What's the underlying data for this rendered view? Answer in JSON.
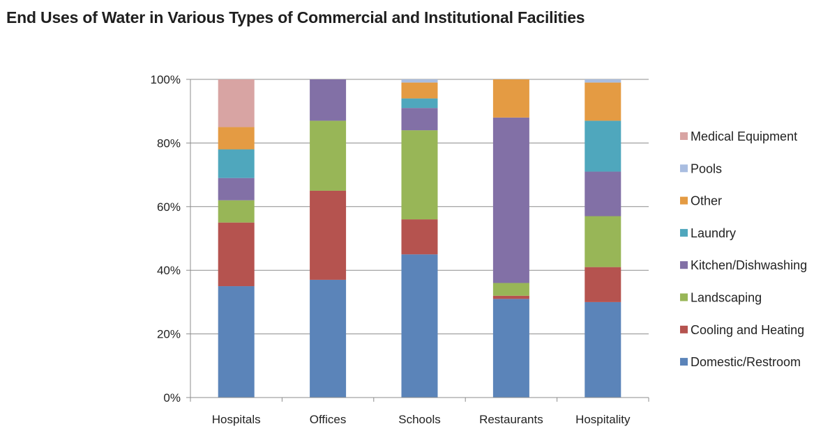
{
  "chart_data": {
    "type": "bar",
    "stacked": true,
    "title": "End Uses of Water in Various Types of Commercial and Institutional Facilities",
    "xlabel": "",
    "ylabel": "",
    "ylim": [
      0,
      100
    ],
    "y_ticks": [
      "0%",
      "20%",
      "40%",
      "60%",
      "80%",
      "100%"
    ],
    "y_tick_values": [
      0,
      20,
      40,
      60,
      80,
      100
    ],
    "grid": true,
    "legend_position": "right",
    "categories": [
      "Hospitals",
      "Offices",
      "Schools",
      "Restaurants",
      "Hospitality"
    ],
    "series": [
      {
        "name": "Domestic/Restroom",
        "color": "#5b84b9",
        "values": [
          35,
          37,
          45,
          31,
          30
        ]
      },
      {
        "name": "Cooling and Heating",
        "color": "#b5534f",
        "values": [
          20,
          28,
          11,
          1,
          11
        ]
      },
      {
        "name": "Landscaping",
        "color": "#98b657",
        "values": [
          7,
          22,
          28,
          4,
          16
        ]
      },
      {
        "name": "Kitchen/Dishwashing",
        "color": "#8270a6",
        "values": [
          7,
          13,
          7,
          52,
          14
        ]
      },
      {
        "name": "Laundry",
        "color": "#4fa7bd",
        "values": [
          9,
          0,
          3,
          0,
          16
        ]
      },
      {
        "name": "Other",
        "color": "#e49b43",
        "values": [
          7,
          0,
          5,
          12,
          12
        ]
      },
      {
        "name": "Pools",
        "color": "#a9bde0",
        "values": [
          0,
          0,
          1,
          0,
          1
        ]
      },
      {
        "name": "Medical Equipment",
        "color": "#d8a4a3",
        "values": [
          15,
          0,
          0,
          0,
          0
        ]
      }
    ]
  }
}
